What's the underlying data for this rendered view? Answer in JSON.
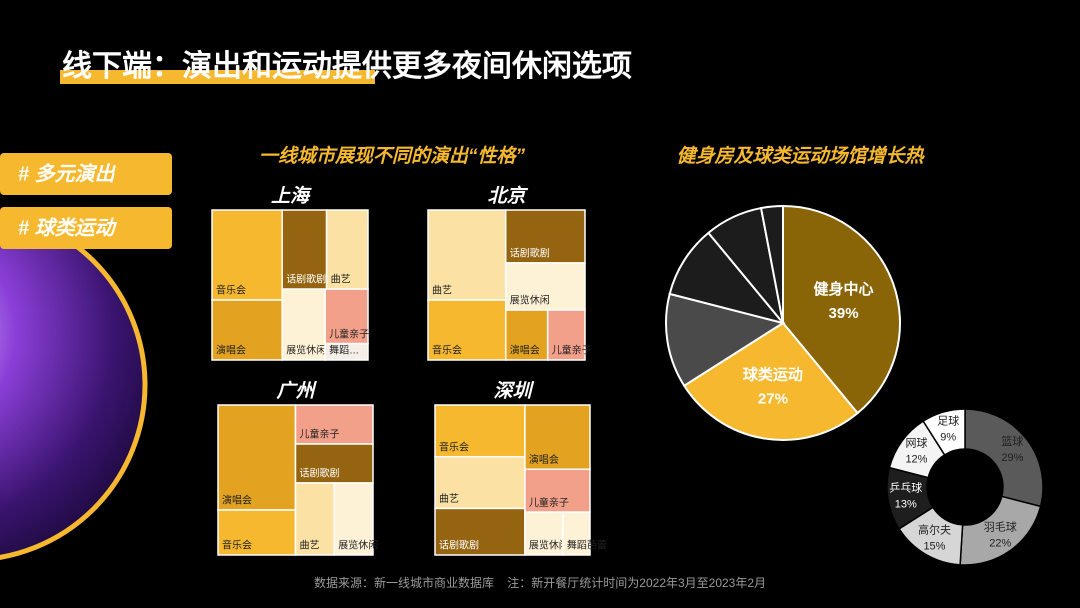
{
  "title": "线下端：演出和运动提供更多夜间休闲选项",
  "tags": [
    "# 多元演出",
    "# 球类运动"
  ],
  "treemap_heading": "一线城市展现不同的演出“性格”",
  "source_note": "数据来源：新一线城市商业数据库    注：新开餐厅统计时间为2022年3月至2023年2月",
  "chart_data": [
    {
      "type": "treemap",
      "title": "上海",
      "categories": [
        "音乐会",
        "演唱会",
        "话剧歌剧",
        "曲艺",
        "展览休闲",
        "儿童亲子",
        "舞蹈…"
      ],
      "values": [
        27,
        18,
        15,
        14,
        13,
        10,
        3
      ],
      "colors": [
        "#f5b82e",
        "#e3a21f",
        "#946410",
        "#fbe2a4",
        "#fdf1d6",
        "#f3a08a",
        "#f4eee6"
      ]
    },
    {
      "type": "treemap",
      "title": "北京",
      "categories": [
        "曲艺",
        "音乐会",
        "话剧歌剧",
        "展览休闲",
        "演唱会",
        "儿童亲子"
      ],
      "values": [
        30,
        20,
        18,
        16,
        9,
        8
      ],
      "colors": [
        "#fbe2a4",
        "#f5b82e",
        "#946410",
        "#fdf1d6",
        "#e3a21f",
        "#f3a08a"
      ]
    },
    {
      "type": "treemap",
      "title": "广州",
      "categories": [
        "演唱会",
        "音乐会",
        "儿童亲子",
        "话剧歌剧",
        "曲艺",
        "展览休闲"
      ],
      "values": [
        35,
        15,
        13,
        13,
        12,
        12
      ],
      "colors": [
        "#e3a21f",
        "#f5b82e",
        "#f3a08a",
        "#946410",
        "#fbe2a4",
        "#fdf1d6"
      ]
    },
    {
      "type": "treemap",
      "title": "深圳",
      "categories": [
        "音乐会",
        "曲艺",
        "话剧歌剧",
        "演唱会",
        "儿童亲子",
        "展览休闲",
        "舞蹈芭蕾"
      ],
      "values": [
        20,
        20,
        18,
        18,
        12,
        7,
        5
      ],
      "colors": [
        "#f5b82e",
        "#fbe2a4",
        "#946410",
        "#e3a21f",
        "#f3a08a",
        "#fdf1d6",
        "#fdf1d6"
      ]
    },
    {
      "type": "pie",
      "title": "健身房及球类运动场馆增长热",
      "categories": [
        "健身中心",
        "球类运动",
        null,
        null,
        null,
        null
      ],
      "values": [
        39,
        27,
        13,
        10,
        8,
        3
      ],
      "value_labels": [
        "39%",
        "27%",
        null,
        null,
        null,
        null
      ],
      "colors": [
        "#8a6508",
        "#f5b82e",
        "#4a4a4a",
        "#1c1c1c",
        "#1c1c1c",
        "#1c1c1c"
      ]
    },
    {
      "type": "donut",
      "categories": [
        "篮球",
        "羽毛球",
        "高尔夫",
        "乒乓球",
        "网球",
        "足球"
      ],
      "values": [
        29,
        22,
        15,
        13,
        12,
        9
      ],
      "value_labels": [
        "29%",
        "22%",
        "15%",
        "13%",
        "12%",
        "9%"
      ],
      "colors": [
        "#5a5a5a",
        "#a8a8a8",
        "#d6d6d6",
        "#1e1e1e",
        "#f4f4f4",
        "#ffffff"
      ]
    }
  ]
}
